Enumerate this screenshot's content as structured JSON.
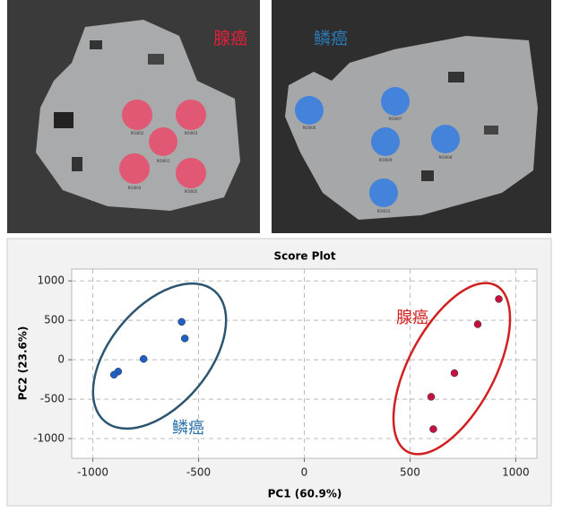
{
  "images": [
    {
      "label": "腺癌",
      "rois": [
        "ROI002",
        "ROI003",
        "ROI001",
        "ROI004",
        "ROI005"
      ]
    },
    {
      "label": "鳞癌",
      "rois": [
        "ROI006",
        "ROI007",
        "ROI009",
        "ROI008",
        "ROI010"
      ]
    }
  ],
  "chart_data": {
    "type": "scatter",
    "title": "Score Plot",
    "x_label": "PC1 (60.9%)",
    "y_label": "PC2 (23.6%)",
    "xlim": [
      -1100,
      1100
    ],
    "ylim": [
      -1250,
      1150
    ],
    "xticks": [
      -1000,
      -500,
      0,
      500,
      1000
    ],
    "yticks": [
      -1000,
      -500,
      0,
      500,
      1000
    ],
    "grid": true,
    "series": [
      {
        "name": "鳞癌",
        "color": "#1f5fc4",
        "x": [
          -580,
          -565,
          -760,
          -880,
          -900
        ],
        "values": [
          480,
          270,
          10,
          -150,
          -190
        ]
      },
      {
        "name": "腺癌",
        "color": "#c3123f",
        "x": [
          920,
          820,
          710,
          600,
          610
        ],
        "values": [
          770,
          450,
          -170,
          -470,
          -880
        ]
      }
    ]
  }
}
